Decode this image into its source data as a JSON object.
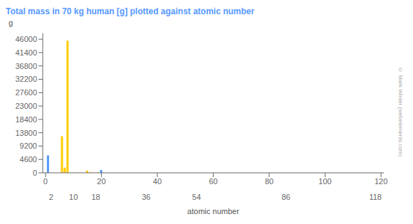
{
  "chart_data": {
    "type": "bar",
    "title": "Total mass in 70 kg human [g] plotted against atomic number",
    "ylabel": "g",
    "xlabel": "atomic number",
    "title_color": "#5599ff",
    "x": [
      1,
      6,
      7,
      8,
      11,
      12,
      15,
      16,
      17,
      19,
      20,
      26,
      30
    ],
    "values": [
      6000,
      12600,
      1800,
      45500,
      100,
      19,
      780,
      140,
      95,
      140,
      1000,
      4.2,
      2.3
    ],
    "colors": [
      "#5599ff",
      "#ffcc00",
      "#ffcc00",
      "#ffcc00",
      "#ffcc00",
      "#ffcc00",
      "#ffcc00",
      "#ffcc00",
      "#ffcc00",
      "#ffcc00",
      "#5599ff",
      "#ffcc00",
      "#ffcc00"
    ],
    "xlim": [
      -1,
      121
    ],
    "xticks": [
      0,
      20,
      40,
      60,
      80,
      100,
      120
    ],
    "x2ticks": [
      2,
      10,
      18,
      36,
      54,
      86,
      118
    ],
    "ylim": [
      0,
      48000
    ],
    "yticks": [
      0,
      4600,
      9200,
      13800,
      18400,
      23000,
      27600,
      32200,
      36800,
      41400,
      46000
    ],
    "grid": false,
    "annotations": [
      "© Mark Winter (webelements.com)"
    ]
  }
}
